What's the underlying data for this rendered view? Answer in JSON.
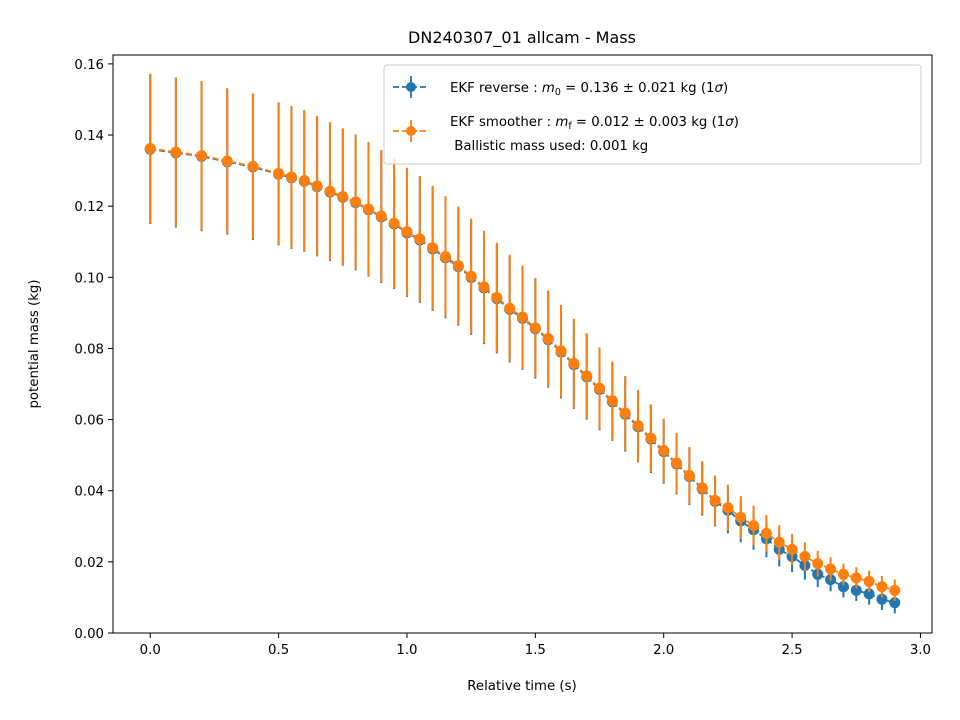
{
  "chart_data": {
    "type": "errorbar-line",
    "title": "DN240307_01 allcam - Mass",
    "xlabel": "Relative time (s)",
    "ylabel": "potential mass (kg)",
    "xlim": [
      -0.145,
      3.045
    ],
    "ylim": [
      0.0,
      0.1625
    ],
    "xticks": [
      0.0,
      0.5,
      1.0,
      1.5,
      2.0,
      2.5,
      3.0
    ],
    "xtick_labels": [
      "0.0",
      "0.5",
      "1.0",
      "1.5",
      "2.0",
      "2.5",
      "3.0"
    ],
    "yticks": [
      0.0,
      0.02,
      0.04,
      0.06,
      0.08,
      0.1,
      0.12,
      0.14,
      0.16
    ],
    "ytick_labels": [
      "0.00",
      "0.02",
      "0.04",
      "0.06",
      "0.08",
      "0.10",
      "0.12",
      "0.14",
      "0.16"
    ],
    "grid": false,
    "legend_position": "top-right",
    "legend": [
      {
        "prefix": "EKF reverse : ",
        "symbol": "m",
        "sub": "0",
        "suffix": " =  0.136 ± 0.021 kg (1",
        "sigma": "σ",
        "close": ")"
      },
      {
        "prefix": "EKF smoother : ",
        "symbol": "m",
        "sub": "f",
        "suffix": " =  0.012 ± 0.003 kg (1",
        "sigma": "σ",
        "close": ")",
        "line2": " Ballistic mass used: 0.001 kg"
      }
    ],
    "colors": {
      "reverse": "#1f77b4",
      "smoother": "#ff7f0e"
    },
    "series": [
      {
        "name": "EKF reverse",
        "x": [
          0.0,
          0.1,
          0.2,
          0.3,
          0.4,
          0.5,
          0.55,
          0.6,
          0.65,
          0.7,
          0.75,
          0.8,
          0.85,
          0.9,
          0.95,
          1.0,
          1.05,
          1.1,
          1.15,
          1.2,
          1.25,
          1.3,
          1.35,
          1.4,
          1.45,
          1.5,
          1.55,
          1.6,
          1.65,
          1.7,
          1.75,
          1.8,
          1.85,
          1.9,
          1.95,
          2.0,
          2.05,
          2.1,
          2.15,
          2.2,
          2.25,
          2.3,
          2.35,
          2.4,
          2.45,
          2.5,
          2.55,
          2.6,
          2.65,
          2.7,
          2.75,
          2.8,
          2.85,
          2.9
        ],
        "y": [
          0.136,
          0.135,
          0.134,
          0.1325,
          0.131,
          0.129,
          0.128,
          0.127,
          0.1255,
          0.124,
          0.1225,
          0.121,
          0.119,
          0.117,
          0.115,
          0.1125,
          0.1105,
          0.108,
          0.1055,
          0.103,
          0.1,
          0.097,
          0.094,
          0.091,
          0.0885,
          0.0855,
          0.0825,
          0.079,
          0.0755,
          0.072,
          0.0685,
          0.065,
          0.0615,
          0.058,
          0.0545,
          0.051,
          0.0475,
          0.044,
          0.0405,
          0.037,
          0.0345,
          0.0315,
          0.029,
          0.0265,
          0.0235,
          0.0215,
          0.019,
          0.0165,
          0.015,
          0.013,
          0.012,
          0.011,
          0.0095,
          0.0085
        ],
        "err": [
          0.021,
          0.021,
          0.021,
          0.0205,
          0.0205,
          0.02,
          0.02,
          0.0198,
          0.0196,
          0.0194,
          0.0192,
          0.019,
          0.0188,
          0.0186,
          0.0183,
          0.018,
          0.0177,
          0.0174,
          0.017,
          0.0166,
          0.0162,
          0.0158,
          0.0154,
          0.015,
          0.0145,
          0.014,
          0.0135,
          0.013,
          0.0125,
          0.012,
          0.0115,
          0.011,
          0.0105,
          0.01,
          0.0095,
          0.009,
          0.0085,
          0.008,
          0.0075,
          0.007,
          0.0065,
          0.006,
          0.0056,
          0.0052,
          0.0048,
          0.0044,
          0.004,
          0.0036,
          0.0033,
          0.003,
          0.003,
          0.003,
          0.003,
          0.003
        ]
      },
      {
        "name": "EKF smoother",
        "x": [
          0.0,
          0.1,
          0.2,
          0.3,
          0.4,
          0.5,
          0.55,
          0.6,
          0.65,
          0.7,
          0.75,
          0.8,
          0.85,
          0.9,
          0.95,
          1.0,
          1.05,
          1.1,
          1.15,
          1.2,
          1.25,
          1.3,
          1.35,
          1.4,
          1.45,
          1.5,
          1.55,
          1.6,
          1.65,
          1.7,
          1.75,
          1.8,
          1.85,
          1.9,
          1.95,
          2.0,
          2.05,
          2.1,
          2.15,
          2.2,
          2.25,
          2.3,
          2.35,
          2.4,
          2.45,
          2.5,
          2.55,
          2.6,
          2.65,
          2.7,
          2.75,
          2.8,
          2.85,
          2.9
        ],
        "y": [
          0.1362,
          0.1352,
          0.1342,
          0.1327,
          0.1312,
          0.1292,
          0.1282,
          0.1272,
          0.1257,
          0.1242,
          0.1227,
          0.1212,
          0.1192,
          0.1172,
          0.1152,
          0.1128,
          0.1108,
          0.1083,
          0.1058,
          0.1033,
          0.1003,
          0.0973,
          0.0943,
          0.0913,
          0.0888,
          0.0858,
          0.0828,
          0.0793,
          0.0758,
          0.0723,
          0.0688,
          0.0653,
          0.0618,
          0.0583,
          0.0548,
          0.0513,
          0.0478,
          0.0443,
          0.0408,
          0.0373,
          0.0352,
          0.0325,
          0.0302,
          0.028,
          0.0255,
          0.0235,
          0.0215,
          0.0195,
          0.018,
          0.0165,
          0.0155,
          0.0145,
          0.013,
          0.012
        ],
        "err": [
          0.021,
          0.021,
          0.021,
          0.0205,
          0.0205,
          0.02,
          0.02,
          0.0198,
          0.0196,
          0.0194,
          0.0192,
          0.019,
          0.0188,
          0.0186,
          0.0183,
          0.018,
          0.0177,
          0.0174,
          0.017,
          0.0166,
          0.0162,
          0.0158,
          0.0154,
          0.015,
          0.0145,
          0.014,
          0.0135,
          0.013,
          0.0125,
          0.012,
          0.0115,
          0.011,
          0.0105,
          0.01,
          0.0095,
          0.009,
          0.0085,
          0.008,
          0.0075,
          0.007,
          0.0065,
          0.006,
          0.0056,
          0.0052,
          0.0048,
          0.0044,
          0.004,
          0.0036,
          0.0033,
          0.003,
          0.003,
          0.003,
          0.003,
          0.003
        ]
      }
    ]
  }
}
